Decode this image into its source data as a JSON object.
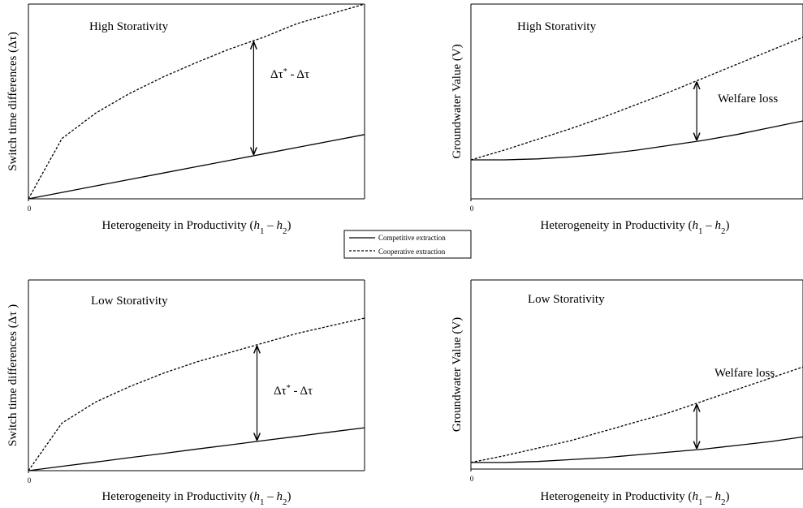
{
  "chart_data": [
    {
      "type": "line",
      "title": "High Storativity",
      "x_label": [
        "Heterogeneity in Productivity (",
        "h",
        "1",
        " – ",
        "h",
        "2",
        ")"
      ],
      "y_label": "Switch time differences (Δτ)",
      "annotation": [
        "Δτ",
        "*",
        " - Δτ"
      ],
      "x": [
        0,
        1,
        2,
        3,
        4,
        5,
        6,
        7,
        8,
        9,
        10
      ],
      "series": [
        {
          "name": "Competitive extraction",
          "color": "#000000",
          "dash": false,
          "values": [
            0,
            0.33,
            0.66,
            0.99,
            1.32,
            1.65,
            1.98,
            2.31,
            2.64,
            2.97,
            3.3
          ]
        },
        {
          "name": "Cooperative extraction",
          "color": "#000000",
          "dash": true,
          "values": [
            0,
            3.1,
            4.4,
            5.4,
            6.25,
            7.0,
            7.7,
            8.3,
            9.0,
            9.5,
            10.0
          ]
        }
      ],
      "xlim": [
        0,
        10
      ],
      "ylim": [
        0,
        10
      ],
      "xticks": [
        0
      ]
    },
    {
      "type": "line",
      "title": "High Storativity",
      "x_label": [
        "Heterogeneity in Productivity (",
        "h",
        "1",
        " – ",
        "h",
        "2",
        ")"
      ],
      "y_label": "Groundwater Value (V)",
      "annotation": [
        "Welfare loss"
      ],
      "x": [
        0,
        1,
        2,
        3,
        4,
        5,
        6,
        7,
        8,
        9,
        10
      ],
      "series": [
        {
          "name": "Competitive extraction",
          "color": "#000000",
          "dash": false,
          "values": [
            2.0,
            2.0,
            2.05,
            2.15,
            2.3,
            2.5,
            2.75,
            3.0,
            3.3,
            3.65,
            4.0
          ]
        },
        {
          "name": "Cooperative extraction",
          "color": "#000000",
          "dash": true,
          "values": [
            2.0,
            2.5,
            3.05,
            3.6,
            4.2,
            4.85,
            5.5,
            6.2,
            6.9,
            7.6,
            8.3
          ]
        }
      ],
      "xlim": [
        0,
        10
      ],
      "ylim": [
        0,
        10
      ],
      "xticks": [
        0
      ]
    },
    {
      "type": "line",
      "title": "Low Storativity",
      "x_label": [
        "Heterogeneity in Productivity (",
        "h",
        "1",
        " – ",
        "h",
        "2",
        ")"
      ],
      "y_label": "Switch time differences (Δτ )",
      "annotation": [
        "Δτ",
        "*",
        " - Δτ"
      ],
      "x": [
        0,
        1,
        2,
        3,
        4,
        5,
        6,
        7,
        8,
        9,
        10
      ],
      "series": [
        {
          "name": "Competitive extraction",
          "color": "#000000",
          "dash": false,
          "values": [
            0,
            0.23,
            0.45,
            0.68,
            0.9,
            1.13,
            1.35,
            1.58,
            1.8,
            2.03,
            2.25
          ]
        },
        {
          "name": "Cooperative extraction",
          "color": "#000000",
          "dash": true,
          "values": [
            0,
            2.5,
            3.6,
            4.4,
            5.1,
            5.7,
            6.2,
            6.7,
            7.2,
            7.6,
            8.0
          ]
        }
      ],
      "xlim": [
        0,
        10
      ],
      "ylim": [
        0,
        10
      ],
      "xticks": [
        0
      ]
    },
    {
      "type": "line",
      "title": "Low Storativity",
      "x_label": [
        "Heterogeneity in Productivity (",
        "h",
        "1",
        " – ",
        "h",
        "2",
        ")"
      ],
      "y_label": "Groundwater Value (V)",
      "annotation": [
        "Welfare loss"
      ],
      "x": [
        0,
        1,
        2,
        3,
        4,
        5,
        6,
        7,
        8,
        9,
        10
      ],
      "series": [
        {
          "name": "Competitive extraction",
          "color": "#000000",
          "dash": false,
          "values": [
            0.35,
            0.35,
            0.4,
            0.5,
            0.6,
            0.75,
            0.9,
            1.05,
            1.25,
            1.45,
            1.7
          ]
        },
        {
          "name": "Cooperative extraction",
          "color": "#000000",
          "dash": true,
          "values": [
            0.35,
            0.7,
            1.1,
            1.5,
            2.0,
            2.5,
            3.0,
            3.6,
            4.2,
            4.8,
            5.4
          ]
        }
      ],
      "xlim": [
        0,
        10
      ],
      "ylim": [
        0,
        10
      ],
      "xticks": [
        0
      ]
    }
  ]
}
